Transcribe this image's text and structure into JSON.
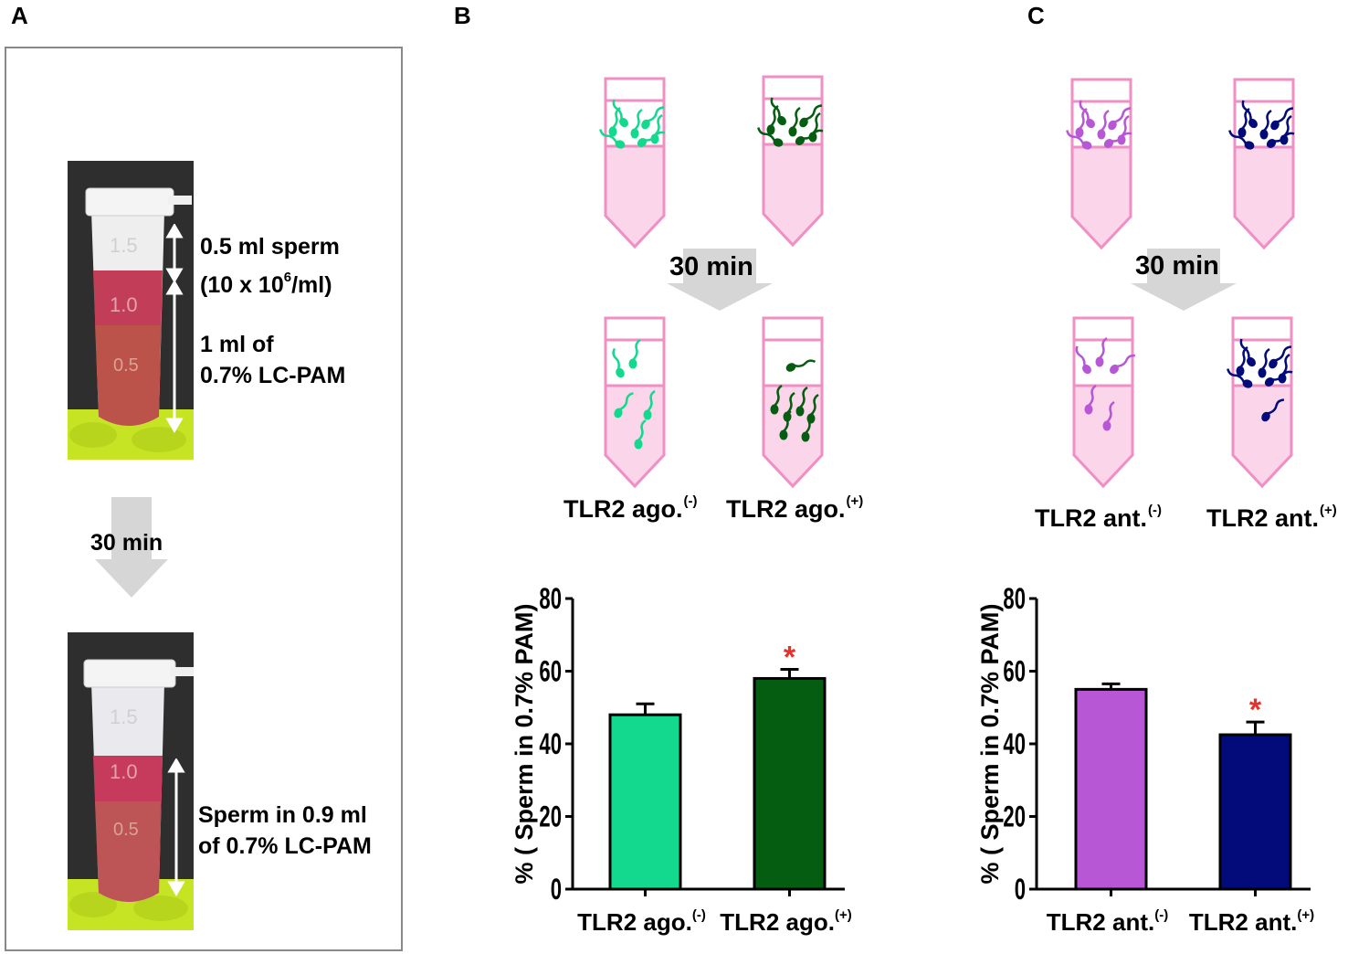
{
  "panels": {
    "a": {
      "label": "A",
      "top_annotation_1": "0.5 ml sperm",
      "top_annotation_2": "(10 x 10",
      "top_annotation_2_sup": "6",
      "top_annotation_2_end": "/ml)",
      "top_annotation_3": "1 ml of",
      "top_annotation_4": "0.7% LC-PAM",
      "arrow_label": "30 min",
      "bottom_annotation_1": "Sperm in 0.9 ml",
      "bottom_annotation_2": "of 0.7% LC-PAM",
      "tube_mark_1": "1.5",
      "tube_mark_2": "1.0",
      "tube_mark_3": "0.5"
    },
    "b": {
      "label": "B",
      "arrow_label": "30 min",
      "tube_label_1": "TLR2 ago.",
      "tube_label_1_sup": "(-)",
      "tube_label_2": "TLR2 ago.",
      "tube_label_2_sup": "(+)"
    },
    "c": {
      "label": "C",
      "arrow_label": "30 min",
      "tube_label_1": "TLR2 ant.",
      "tube_label_1_sup": "(-)",
      "tube_label_2": "TLR2 ant.",
      "tube_label_2_sup": "(+)"
    }
  },
  "colors": {
    "ago_neg": "#12d98d",
    "ago_pos": "#045d10",
    "ant_neg": "#b857d6",
    "ant_pos": "#030b7a",
    "tube_fill": "#fbd5ea",
    "tube_stroke": "#ef8fc4",
    "asterisk": "#e8312b",
    "arrow_gray": "#d6d6d6"
  },
  "chart_data": [
    {
      "type": "bar",
      "panel": "B",
      "categories": [
        "TLR2 ago.",
        "TLR2 ago."
      ],
      "category_sups": [
        "(-)",
        "(+)"
      ],
      "values": [
        48,
        58
      ],
      "errors": [
        3,
        2.5
      ],
      "significance": [
        "",
        "*"
      ],
      "ylabel": "% ( Sperm in 0.7% PAM)",
      "ylim": [
        0,
        80
      ],
      "yticks": [
        0,
        20,
        40,
        60,
        80
      ],
      "colors": [
        "#12d98d",
        "#045d10"
      ]
    },
    {
      "type": "bar",
      "panel": "C",
      "categories": [
        "TLR2 ant.",
        "TLR2 ant."
      ],
      "category_sups": [
        "(-)",
        "(+)"
      ],
      "values": [
        55,
        42.5
      ],
      "errors": [
        1.5,
        3.5
      ],
      "significance": [
        "",
        "*"
      ],
      "ylabel": "% ( Sperm in 0.7% PAM)",
      "ylim": [
        0,
        80
      ],
      "yticks": [
        0,
        20,
        40,
        60,
        80
      ],
      "colors": [
        "#b857d6",
        "#030b7a"
      ]
    }
  ]
}
